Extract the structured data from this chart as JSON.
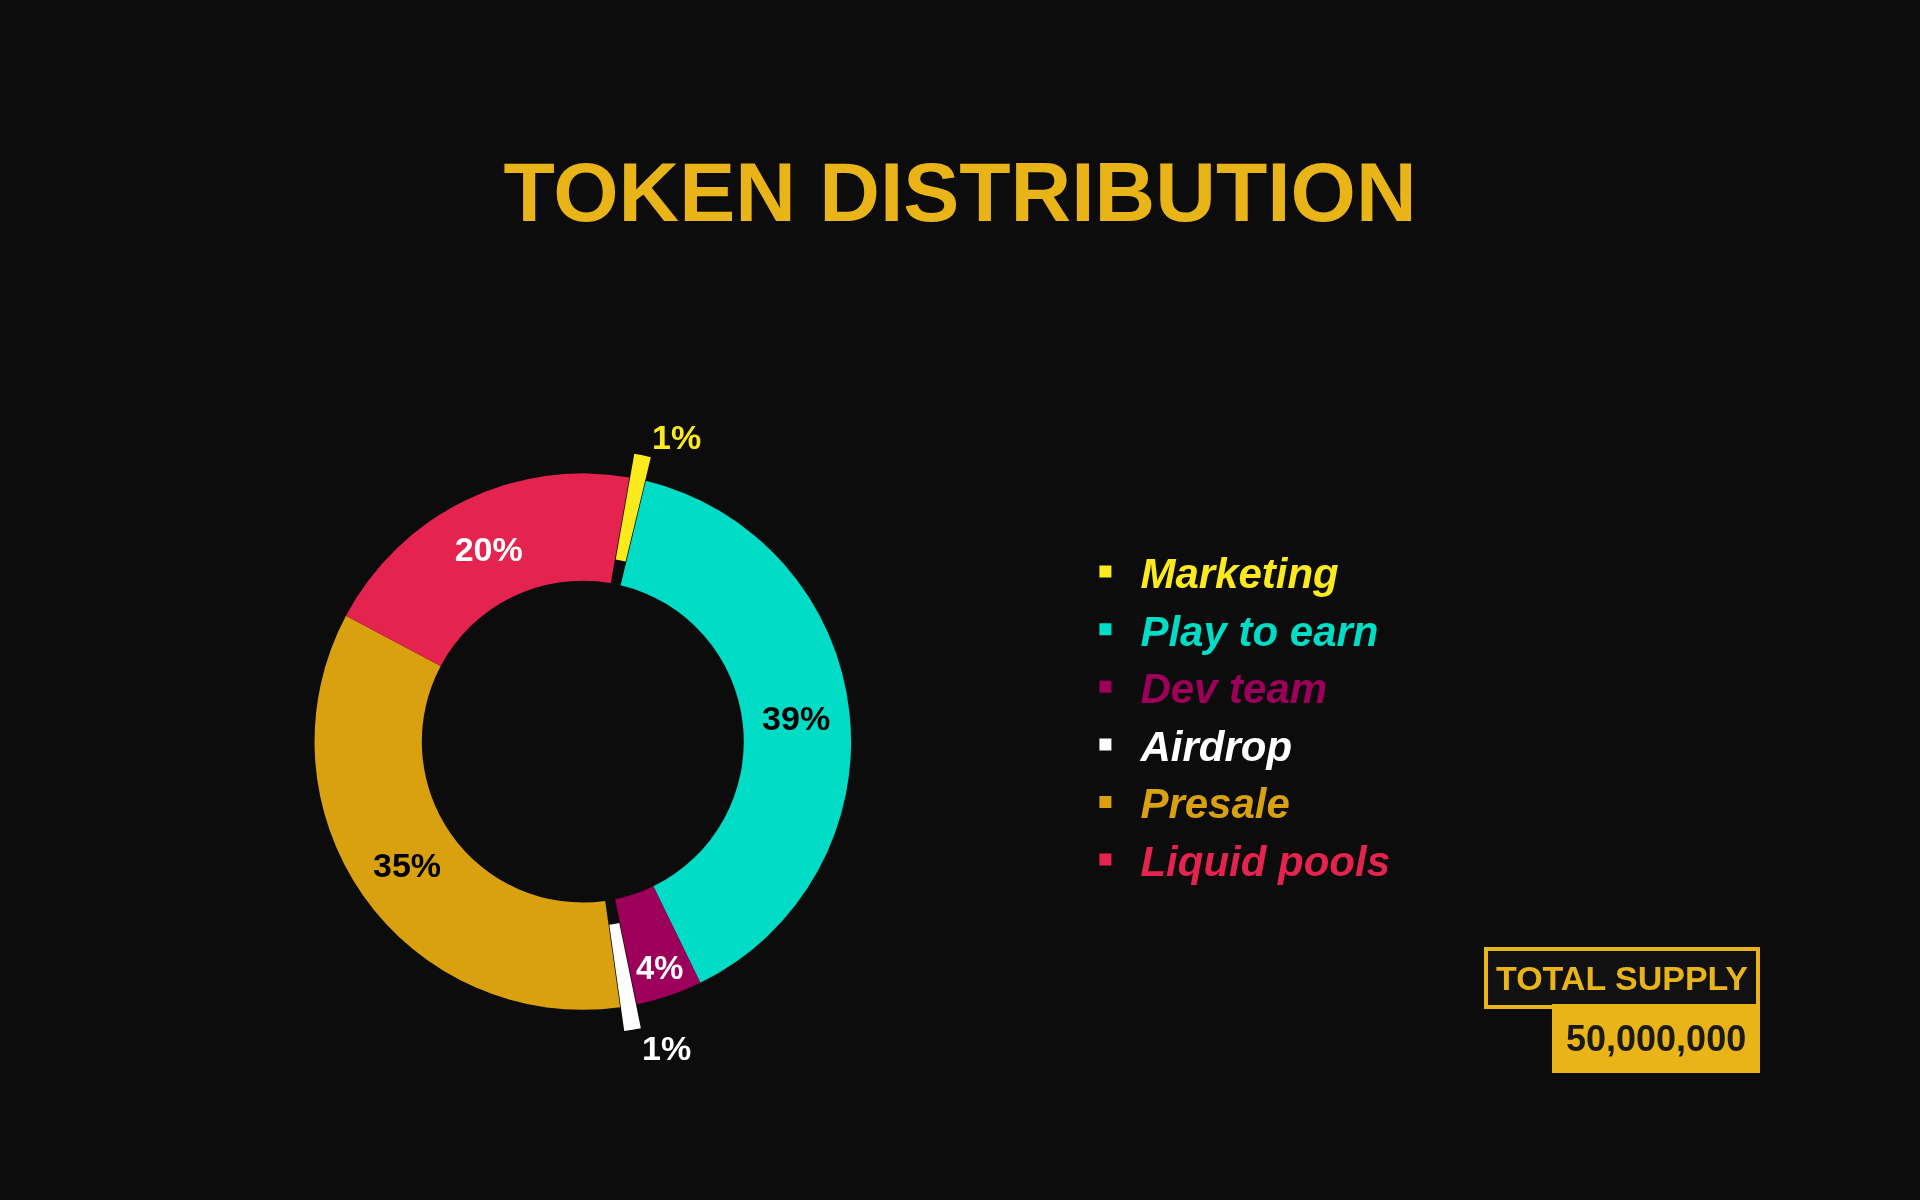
{
  "chart_data": {
    "type": "donut",
    "title": "TOKEN DISTRIBUTION",
    "categories": [
      "Marketing",
      "Play to earn",
      "Dev team",
      "Airdrop",
      "Presale",
      "Liquid pools"
    ],
    "values": [
      1,
      39,
      4,
      1,
      35,
      20
    ],
    "colors": [
      "#fcea1d",
      "#00dcc6",
      "#9c005a",
      "#ffffff",
      "#d9a010",
      "#e5234f"
    ],
    "value_labels": [
      "1%",
      "39%",
      "4%",
      "1%",
      "35%",
      "20%"
    ],
    "legend": "right",
    "annotations": [
      "TOTAL SUPPLY",
      "50,000,000"
    ]
  }
}
